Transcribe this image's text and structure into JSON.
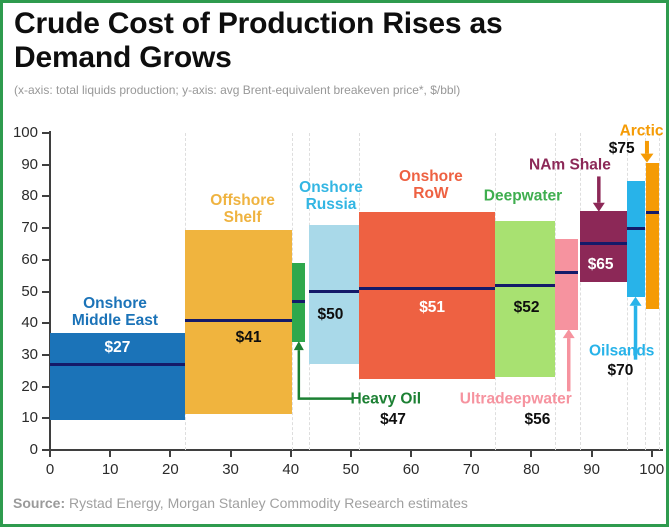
{
  "header": {
    "title_line1": "Crude Cost of Production Rises as",
    "title_line2": "Demand Grows",
    "subtitle": "(x-axis: total liquids production; y-axis: avg Brent-equivalent breakeven price*, $/bbl)"
  },
  "source": {
    "label": "Source:",
    "text": " Rystad Energy, Morgan Stanley Commodity Research estimates"
  },
  "style": {
    "border_color": "#2e9b4e",
    "breakeven_line_color": "#141a69",
    "axis_color": "#3f3f3f",
    "boundary_gridline_color": "#dedede"
  },
  "chart_data": {
    "type": "bar",
    "variant": "variable-width cost curve (supply stack)",
    "title": "Crude Cost of Production Rises as Demand Grows",
    "xlabel": "total liquids production",
    "ylabel": "avg Brent-equivalent breakeven price*, $/bbl",
    "xlim": [
      0,
      101.2
    ],
    "ylim": [
      0,
      100
    ],
    "x_ticks": [
      0,
      10,
      20,
      30,
      40,
      50,
      60,
      70,
      80,
      90,
      100
    ],
    "y_ticks": [
      0,
      10,
      20,
      30,
      40,
      50,
      60,
      70,
      80,
      90,
      100
    ],
    "grid": "off",
    "legend": "none (bars labeled directly)",
    "boundary_lines_x": [
      22.5,
      40.2,
      43.1,
      51.4,
      73.9,
      84,
      88,
      95.8,
      98.8,
      101.2
    ],
    "series": [
      {
        "name": "Onshore Middle East",
        "x_start": 0,
        "x_end": 22.5,
        "cost_low": 9.5,
        "cost_high": 37,
        "breakeven": 27,
        "bar_color": "#1b73b8",
        "cat_label": {
          "text": "Onshore\nMiddle East",
          "color": "#1b73b8",
          "x": 10.8,
          "y": 43.5
        },
        "price_label": {
          "text": "$27",
          "color": "#ffffff",
          "x": 11.2,
          "y": 32.3
        }
      },
      {
        "name": "Offshore Shelf",
        "x_start": 22.5,
        "x_end": 40.2,
        "cost_low": 11.5,
        "cost_high": 69.5,
        "breakeven": 41,
        "bar_color": "#f0b43e",
        "cat_label": {
          "text": "Offshore\nShelf",
          "color": "#efb340",
          "x": 32,
          "y": 76
        },
        "price_label": {
          "text": "$41",
          "color": "#0e0e0e",
          "x": 33,
          "y": 35.3
        }
      },
      {
        "name": "Heavy Oil",
        "x_start": 40.2,
        "x_end": 42.4,
        "cost_low": 34,
        "cost_high": 59,
        "breakeven": 47,
        "bar_color": "#2fa84c",
        "cat_label": {
          "text": "Heavy Oil",
          "color": "#1c8033",
          "x": 55.8,
          "y": 16.2
        },
        "price_label": {
          "text": "$47",
          "color": "#0e0e0e",
          "x": 57,
          "y": 9.5
        },
        "arrow": {
          "color": "#1c8033",
          "width": 2.5,
          "points": [
            [
              50.2,
              16.2
            ],
            [
              41.35,
              16.2
            ],
            [
              41.35,
              31.5
            ]
          ],
          "head": "up"
        }
      },
      {
        "name": "Onshore Russia",
        "x_start": 43.1,
        "x_end": 51.4,
        "cost_low": 27,
        "cost_high": 71,
        "breakeven": 50,
        "bar_color": "#a9d9e9",
        "cat_label": {
          "text": "Onshore\nRussia",
          "color": "#33b6e3",
          "x": 46.7,
          "y": 80
        },
        "price_label": {
          "text": "$50",
          "color": "#0e0e0e",
          "x": 46.6,
          "y": 42.5
        }
      },
      {
        "name": "Onshore RoW",
        "x_start": 51.4,
        "x_end": 73.9,
        "cost_low": 22.5,
        "cost_high": 75,
        "breakeven": 51,
        "bar_color": "#ee6142",
        "cat_label": {
          "text": "Onshore\nRoW",
          "color": "#ee6142",
          "x": 63.3,
          "y": 83.5
        },
        "price_label": {
          "text": "$51",
          "color": "#ffffff",
          "x": 63.5,
          "y": 44.8
        }
      },
      {
        "name": "Deepwater",
        "x_start": 73.9,
        "x_end": 84,
        "cost_low": 23,
        "cost_high": 72.3,
        "breakeven": 52,
        "bar_color": "#a8e171",
        "cat_label": {
          "text": "Deepwater",
          "color": "#3fae4f",
          "x": 78.6,
          "y": 80
        },
        "price_label": {
          "text": "$52",
          "color": "#0e0e0e",
          "x": 79.2,
          "y": 44.8
        }
      },
      {
        "name": "Ultradeepwater",
        "x_start": 84,
        "x_end": 87.7,
        "cost_low": 38,
        "cost_high": 66.5,
        "breakeven": 56,
        "bar_color": "#f6939f",
        "cat_label": {
          "text": "Ultradeepwater",
          "color": "#f6939f",
          "x": 77.4,
          "y": 16
        },
        "price_label": {
          "text": "$56",
          "color": "#0e0e0e",
          "x": 81,
          "y": 9.5
        },
        "arrow": {
          "color": "#f6939f",
          "width": 3.5,
          "points": [
            [
              86.2,
              18.5
            ],
            [
              86.2,
              35.3
            ]
          ],
          "head": "up"
        }
      },
      {
        "name": "NAm Shale",
        "x_start": 88,
        "x_end": 95.8,
        "cost_low": 53,
        "cost_high": 75.3,
        "breakeven": 65,
        "bar_color": "#8c2857",
        "cat_label": {
          "text": "NAm Shale",
          "color": "#8c2857",
          "x": 86.4,
          "y": 90
        },
        "price_label": {
          "text": "$65",
          "color": "#ffffff",
          "x": 91.5,
          "y": 58.4
        },
        "arrow": {
          "color": "#8c2857",
          "width": 3.5,
          "points": [
            [
              91.2,
              86.3
            ],
            [
              91.2,
              78
            ]
          ],
          "head": "down"
        }
      },
      {
        "name": "Oilsands",
        "x_start": 95.8,
        "x_end": 98.8,
        "cost_low": 48.3,
        "cost_high": 85,
        "breakeven": 70,
        "bar_color": "#28b3e9",
        "cat_label": {
          "text": "Oilsands",
          "color": "#28b3e9",
          "x": 95,
          "y": 31.3
        },
        "price_label": {
          "text": "$70",
          "color": "#0e0e0e",
          "x": 94.8,
          "y": 24.9
        },
        "arrow": {
          "color": "#28b3e9",
          "width": 3.5,
          "points": [
            [
              97.3,
              28.5
            ],
            [
              97.3,
              45.5
            ]
          ],
          "head": "up"
        }
      },
      {
        "name": "Arctic",
        "x_start": 99,
        "x_end": 101.2,
        "cost_low": 44.5,
        "cost_high": 90.5,
        "breakeven": 75,
        "bar_color": "#f59b05",
        "cat_label": {
          "text": "Arctic",
          "color": "#f59b05",
          "x": 98.3,
          "y": 100.5
        },
        "price_label": {
          "text": "$75",
          "color": "#0e0e0e",
          "x": 95,
          "y": 94.9
        },
        "arrow": {
          "color": "#f59b05",
          "width": 4,
          "points": [
            [
              99.2,
              97.5
            ],
            [
              99.2,
              93.5
            ]
          ],
          "head": "down"
        }
      }
    ]
  }
}
